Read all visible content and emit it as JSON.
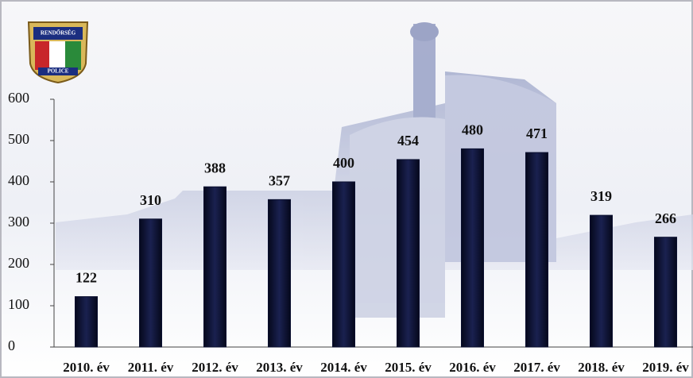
{
  "chart_data": {
    "type": "bar",
    "logo": {
      "top": "RENDŐRSÉG",
      "bottom": "POLICE"
    },
    "categories": [
      "2010. év",
      "2011. év",
      "2012. év",
      "2013. év",
      "2014. év",
      "2015. év",
      "2016. év",
      "2017. év",
      "2018. év",
      "2019. év"
    ],
    "values": [
      122,
      310,
      388,
      357,
      400,
      454,
      480,
      471,
      319,
      266
    ],
    "color": "#0b1030",
    "ylim": [
      0,
      600
    ],
    "yticks": [
      0,
      100,
      200,
      300,
      400,
      500,
      600
    ],
    "grid": false
  }
}
